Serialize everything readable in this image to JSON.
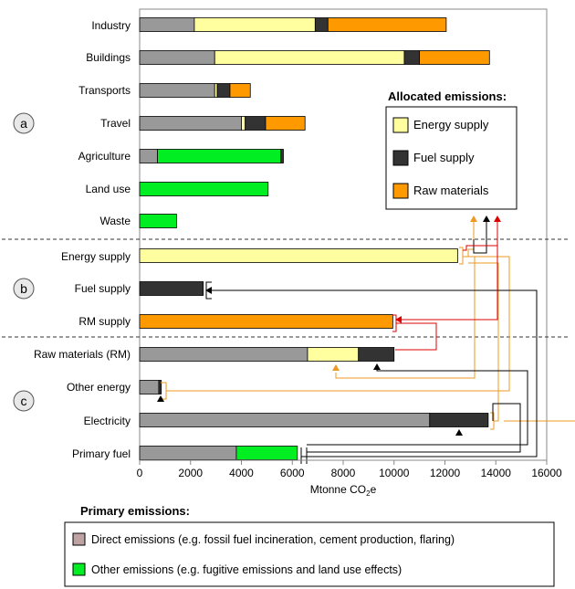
{
  "chart_data": {
    "type": "bar",
    "orientation": "horizontal",
    "stacked": true,
    "xlabel_main": "Mtonne CO",
    "xlabel_sub": "2",
    "xlabel_tail": "e",
    "xlim": [
      0,
      16000
    ],
    "x_ticks": [
      0,
      2000,
      4000,
      6000,
      8000,
      10000,
      12000,
      14000,
      16000
    ],
    "grid": "off",
    "sections": [
      {
        "label": "a",
        "categories": [
          "Industry",
          "Buildings",
          "Transports",
          "Travel",
          "Agriculture",
          "Land use",
          "Waste"
        ]
      },
      {
        "label": "b",
        "categories": [
          "Energy supply",
          "Fuel supply",
          "RM supply"
        ]
      },
      {
        "label": "c",
        "categories": [
          "Raw materials (RM)",
          "Other energy",
          "Electricity",
          "Primary fuel"
        ]
      }
    ],
    "categories": [
      "Industry",
      "Buildings",
      "Transports",
      "Travel",
      "Agriculture",
      "Land use",
      "Waste",
      "Energy supply",
      "Fuel supply",
      "RM supply",
      "Raw materials (RM)",
      "Other energy",
      "Electricity",
      "Primary fuel"
    ],
    "series": [
      {
        "key": "direct",
        "color": "#999999",
        "values": [
          2150,
          2950,
          2950,
          4000,
          700,
          0,
          0,
          0,
          0,
          0,
          6600,
          750,
          11400,
          3800
        ]
      },
      {
        "key": "other",
        "color": "#00ee22",
        "values": [
          0,
          0,
          0,
          0,
          4850,
          5050,
          1450,
          0,
          0,
          0,
          0,
          0,
          0,
          2400
        ]
      },
      {
        "key": "energy_supply",
        "color": "#ffffa0",
        "values": [
          4750,
          7450,
          100,
          150,
          0,
          0,
          0,
          12500,
          0,
          0,
          2000,
          0,
          0,
          0
        ]
      },
      {
        "key": "fuel_supply",
        "color": "#333333",
        "values": [
          500,
          600,
          500,
          800,
          100,
          0,
          0,
          0,
          2500,
          0,
          1400,
          100,
          2300,
          0
        ]
      },
      {
        "key": "raw_materials",
        "color": "#ff9900",
        "values": [
          4650,
          2750,
          800,
          1550,
          0,
          0,
          0,
          0,
          0,
          9950,
          0,
          0,
          0,
          0
        ]
      }
    ],
    "legend_allocated": {
      "title": "Allocated emissions:",
      "position": "top-right",
      "entries": [
        {
          "name": "Energy supply",
          "color": "#ffffa0"
        },
        {
          "name": "Fuel supply",
          "color": "#333333"
        },
        {
          "name": "Raw materials",
          "color": "#ff9900"
        }
      ]
    },
    "legend_primary": {
      "title": "Primary emissions:",
      "position": "bottom",
      "entries": [
        {
          "name": "Direct emissions (e.g. fossil fuel incineration, cement production, flaring)",
          "color": "#bfa3a3"
        },
        {
          "name": "Other emissions (e.g. fugitive emissions and land use effects)",
          "color": "#00ee22"
        }
      ]
    },
    "flow_colors": {
      "energy": "#ee9922",
      "fuel": "#000000",
      "raw_materials": "#dd0000"
    }
  }
}
